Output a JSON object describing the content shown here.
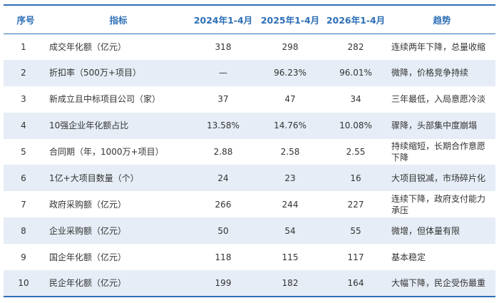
{
  "table": {
    "headers": [
      "序号",
      "指标",
      "2024年1-4月",
      "2025年1-4月",
      "2026年1-4月",
      "趋势"
    ],
    "rows": [
      [
        "1",
        "成交年化额（亿元）",
        "318",
        "298",
        "282",
        "连续两年下降，总量收缩"
      ],
      [
        "2",
        "折扣率（500万+项目）",
        "—",
        "96.23%",
        "96.01%",
        "微降，价格竞争持续"
      ],
      [
        "3",
        "新成立且中标项目公司（家）",
        "37",
        "47",
        "34",
        "三年最低，入局意愿冷淡"
      ],
      [
        "4",
        "10强企业年化额占比",
        "13.58%",
        "14.76%",
        "10.08%",
        "骤降，头部集中度崩塌"
      ],
      [
        "5",
        "合同期（年，1000万+项目）",
        "2.88",
        "2.58",
        "2.55",
        "持续缩短，长期合作意愿下降"
      ],
      [
        "6",
        "1亿+大项目数量（个）",
        "24",
        "23",
        "16",
        "大项目锐减，市场碎片化"
      ],
      [
        "7",
        "政府采购额（亿元）",
        "266",
        "244",
        "227",
        "连续下降，政府支付能力承压"
      ],
      [
        "8",
        "企业采购额（亿元）",
        "50",
        "54",
        "55",
        "微增，但体量有限"
      ],
      [
        "9",
        "国企年化额（亿元）",
        "118",
        "115",
        "117",
        "基本稳定"
      ],
      [
        "10",
        "民企年化额（亿元）",
        "199",
        "182",
        "164",
        "大幅下降，民企受伤最重"
      ]
    ]
  },
  "colors": {
    "accent": "#2e6fb6",
    "row_stripe": "#e6edf6",
    "text": "#333333"
  }
}
